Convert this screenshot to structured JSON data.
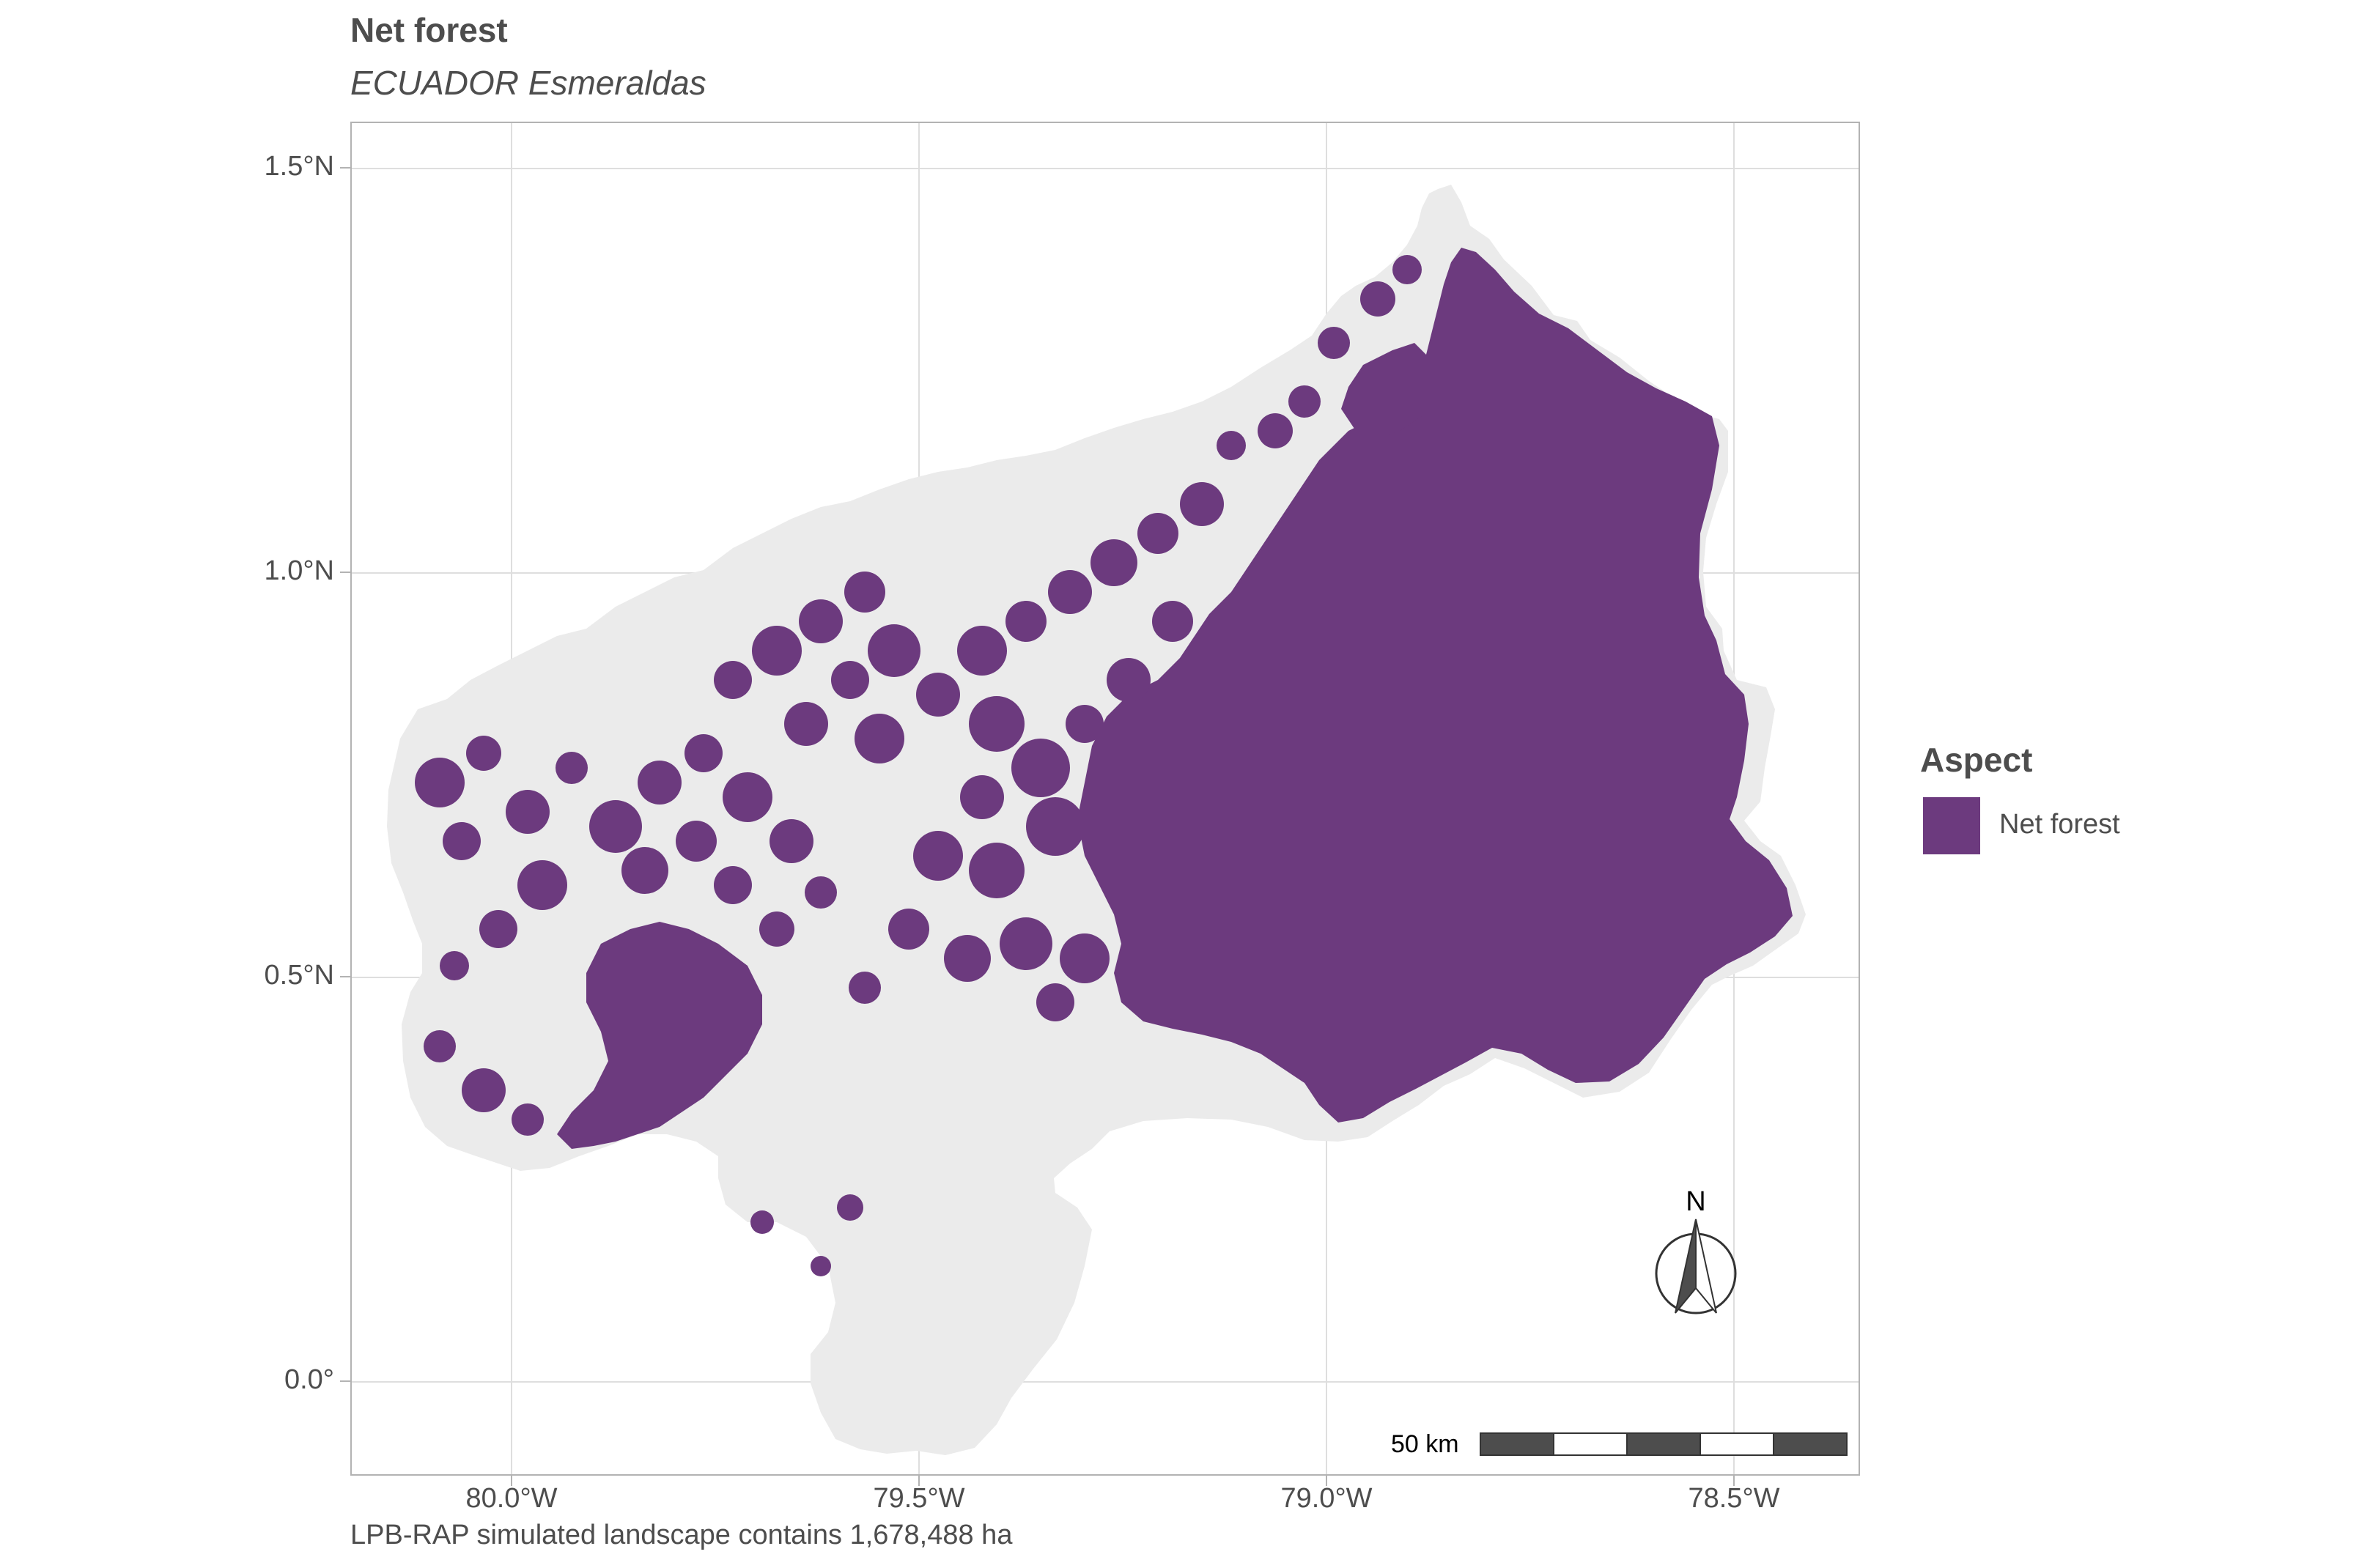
{
  "map": {
    "title": "Net forest",
    "subtitle": "ECUADOR Esmeraldas",
    "caption": "LPB-RAP simulated landscape contains 1,678,488 ha",
    "y_axis_labels": [
      "1.5°N",
      "1.0°N",
      "0.5°N",
      "0.0°"
    ],
    "x_axis_labels": [
      "80.0°W",
      "79.5°W",
      "79.0°W",
      "78.5°W"
    ],
    "legend": {
      "title": "Aspect",
      "items": [
        {
          "label": "Net forest",
          "color": "#6c3a7e"
        }
      ]
    },
    "north_arrow_label": "N",
    "scale_bar_label": "50 km",
    "colors": {
      "forest": "#6c3a7e",
      "landscape": "#ebebeb",
      "grid": "#dedede"
    }
  }
}
